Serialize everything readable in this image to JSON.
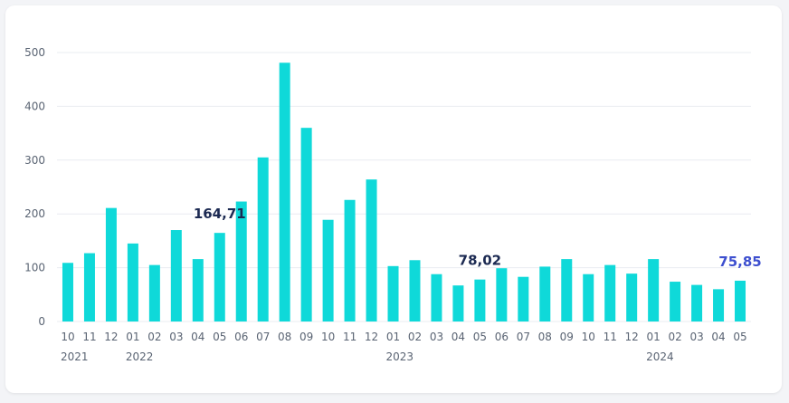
{
  "chart_data": {
    "type": "bar",
    "categories": [
      "10",
      "11",
      "12",
      "01",
      "02",
      "03",
      "04",
      "05",
      "06",
      "07",
      "08",
      "09",
      "10",
      "11",
      "12",
      "01",
      "02",
      "03",
      "04",
      "05",
      "06",
      "07",
      "08",
      "09",
      "10",
      "11",
      "12",
      "01",
      "02",
      "03",
      "04",
      "05"
    ],
    "years": [
      {
        "label": "2021",
        "index": 0
      },
      {
        "label": "2022",
        "index": 3
      },
      {
        "label": "2023",
        "index": 15
      },
      {
        "label": "2024",
        "index": 27
      }
    ],
    "values": [
      109,
      127,
      211,
      145,
      105,
      170,
      116,
      164.71,
      223,
      305,
      481,
      360,
      189,
      226,
      264,
      103,
      114,
      88,
      67,
      78.02,
      99,
      83,
      102,
      116,
      88,
      105,
      89,
      116,
      74,
      68,
      60,
      75.85
    ],
    "ylim": [
      0,
      500
    ],
    "yticks": [
      0,
      100,
      200,
      300,
      400,
      500
    ],
    "bar_color": "#0fd9d9",
    "grid": true,
    "annotations": [
      {
        "index": 7,
        "text": "164,71",
        "color": "#1c2a52"
      },
      {
        "index": 19,
        "text": "78,02",
        "color": "#1c2a52"
      },
      {
        "index": 31,
        "text": "75,85",
        "color": "#3d4fcf"
      }
    ]
  }
}
